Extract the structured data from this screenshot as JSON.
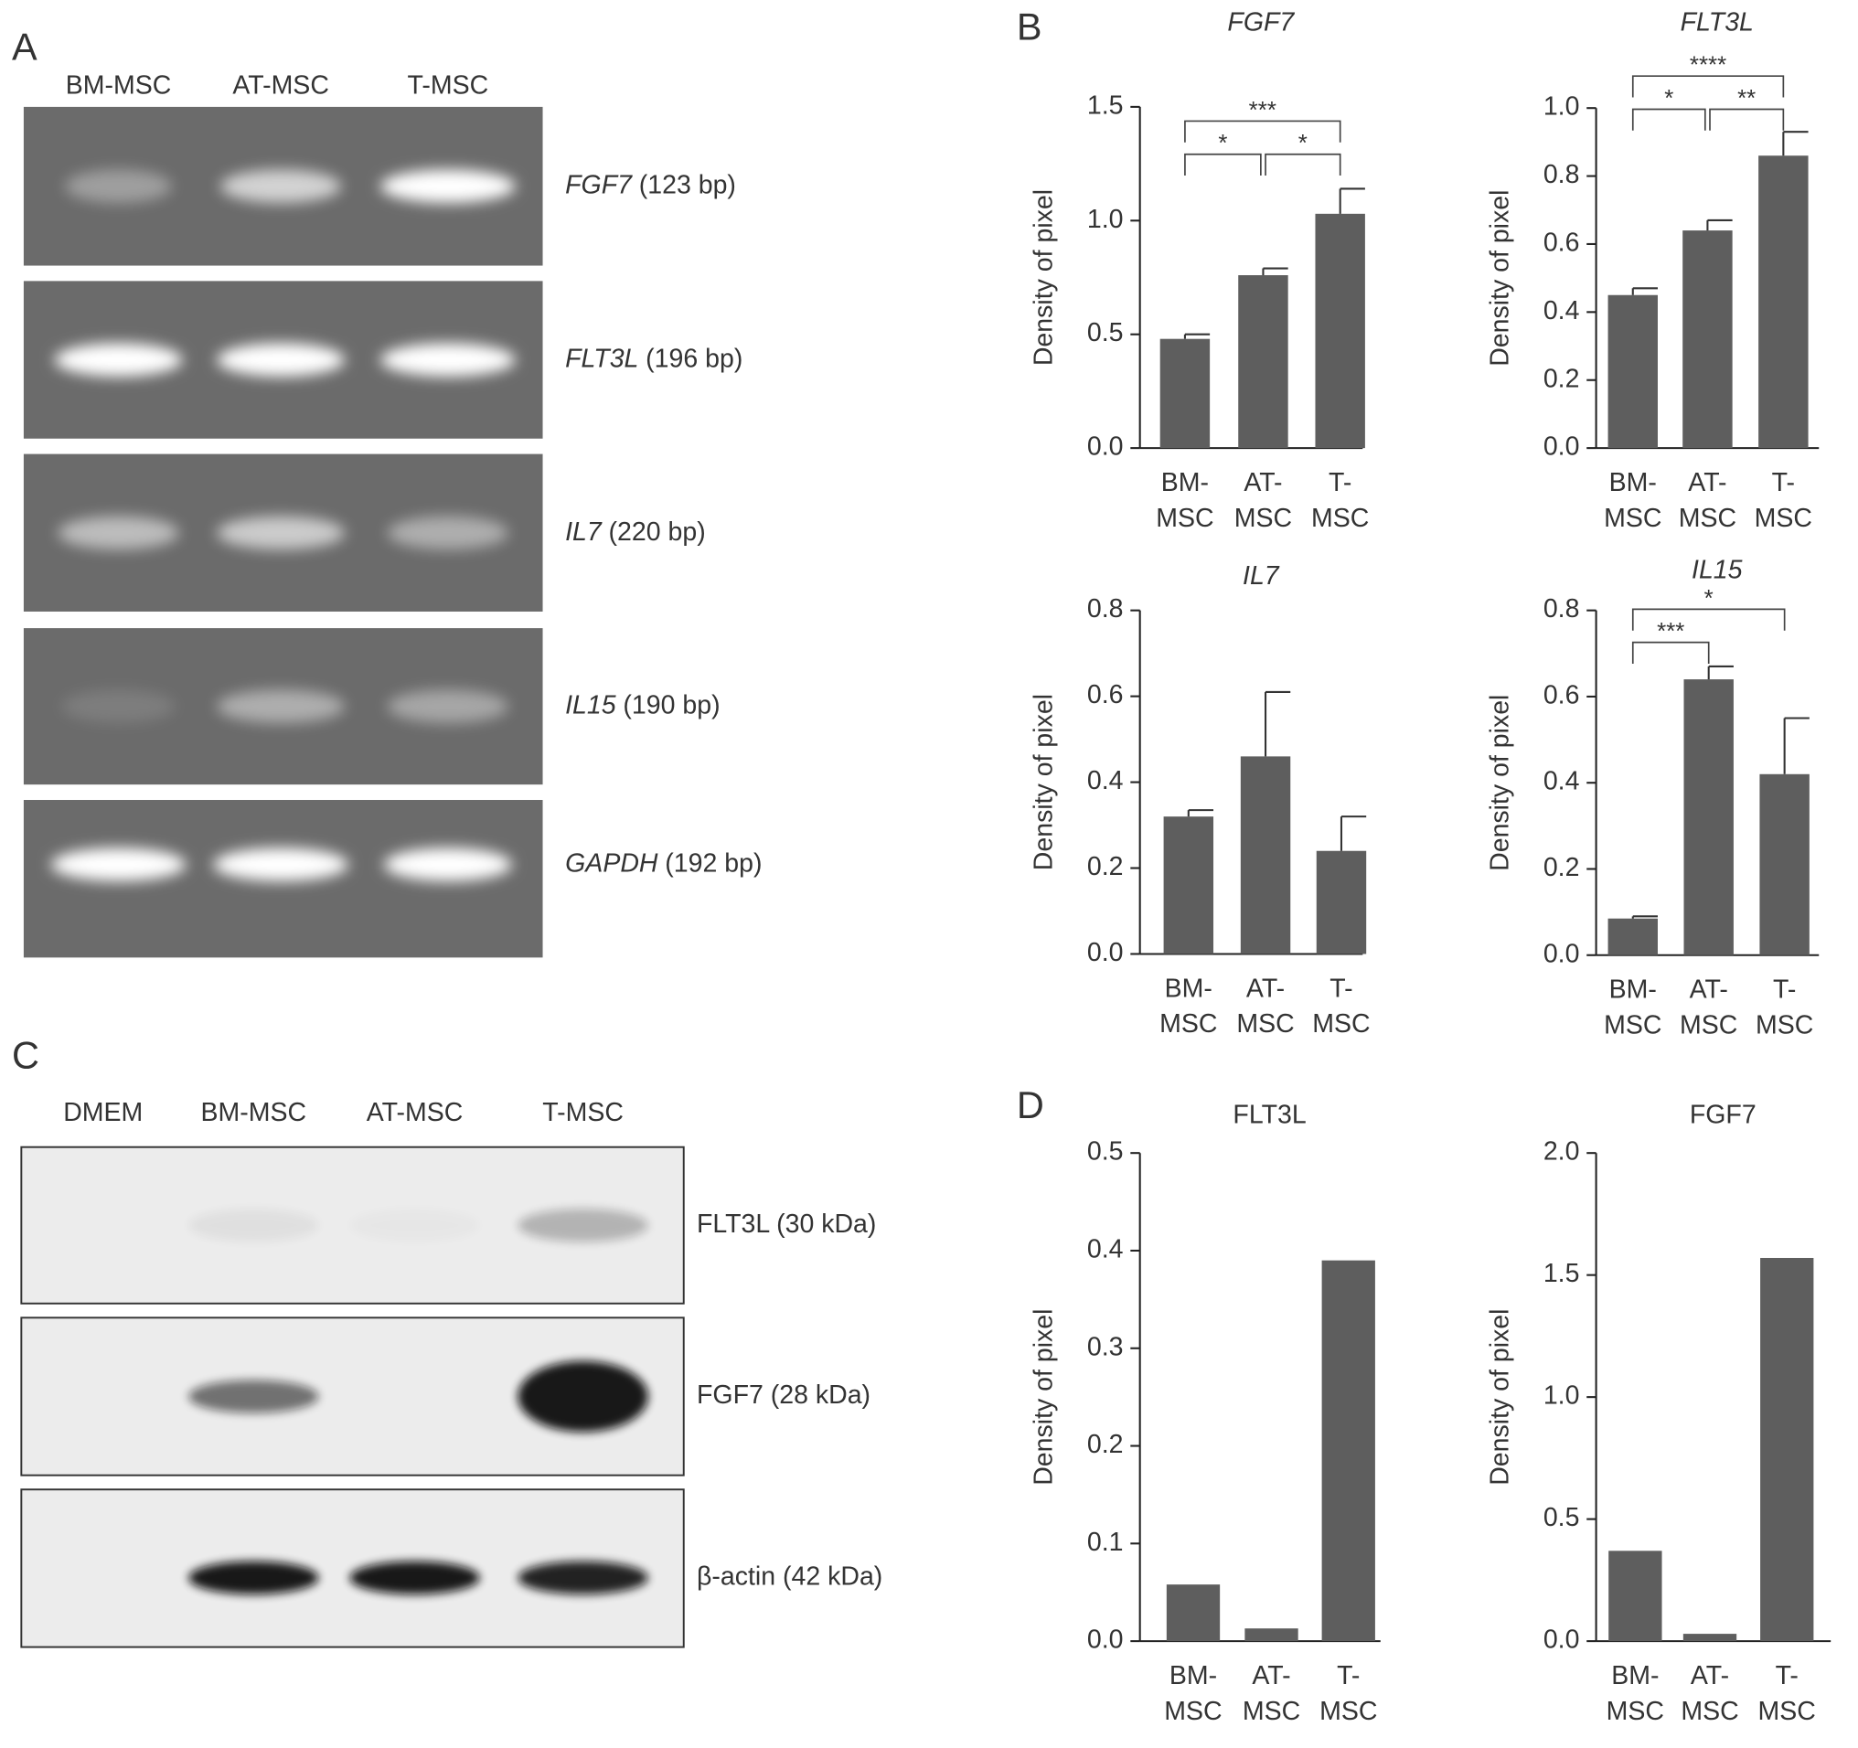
{
  "panel_labels": [
    "A",
    "B",
    "C",
    "D"
  ],
  "rt_pcr": {
    "lanes": [
      "BM-MSC",
      "AT-MSC",
      "T-MSC"
    ],
    "bands": [
      {
        "gene": "FGF7",
        "size": "(123 bp)"
      },
      {
        "gene": "FLT3L",
        "size": "(196 bp)"
      },
      {
        "gene": "IL7",
        "size": "(220 bp)"
      },
      {
        "gene": "IL15",
        "size": "(190 bp)"
      },
      {
        "gene": "GAPDH",
        "size": "(192 bp)"
      }
    ]
  },
  "western_blot": {
    "lanes": [
      "DMEM",
      "BM-MSC",
      "AT-MSC",
      "T-MSC"
    ],
    "bands": [
      "FLT3L (30 kDa)",
      "FGF7 (28 kDa)",
      "β-actin (42 kDa)"
    ]
  },
  "chart_data": [
    {
      "type": "bar",
      "title": "FGF7",
      "title_style": "italic",
      "ylabel": "Density of pixel",
      "color": "#5e5e5e",
      "categories": [
        "BM-\nMSC",
        "AT-\nMSC",
        "T-\nMSC"
      ],
      "values": [
        0.48,
        0.76,
        1.03
      ],
      "errors": [
        0.02,
        0.03,
        0.11
      ],
      "ylim": [
        0,
        1.5
      ],
      "yticks": [
        {
          "value": 0,
          "label": "0.0"
        },
        {
          "value": 0.5,
          "label": "0.5"
        },
        {
          "value": 1,
          "label": "1.0"
        },
        {
          "value": 1.5,
          "label": "1.5"
        }
      ],
      "annotations": [
        {
          "from": 0,
          "to": 1,
          "label": "*"
        },
        {
          "from": 1,
          "to": 2,
          "label": "*"
        },
        {
          "from": 0,
          "to": 2,
          "label": "***"
        }
      ]
    },
    {
      "type": "bar",
      "title": "FLT3L",
      "title_style": "italic",
      "ylabel": "Density of pixel",
      "color": "#5e5e5e",
      "categories": [
        "BM-\nMSC",
        "AT-\nMSC",
        "T-\nMSC"
      ],
      "values": [
        0.45,
        0.64,
        0.86
      ],
      "errors": [
        0.02,
        0.03,
        0.07
      ],
      "ylim": [
        0,
        1.0
      ],
      "yticks": [
        {
          "value": 0,
          "label": "0.0"
        },
        {
          "value": 0.2,
          "label": "0.2"
        },
        {
          "value": 0.4,
          "label": "0.4"
        },
        {
          "value": 0.6,
          "label": "0.6"
        },
        {
          "value": 0.8,
          "label": "0.8"
        },
        {
          "value": 1,
          "label": "1.0"
        }
      ],
      "annotations": [
        {
          "from": 0,
          "to": 1,
          "label": "*"
        },
        {
          "from": 1,
          "to": 2,
          "label": "**"
        },
        {
          "from": 0,
          "to": 2,
          "label": "****"
        }
      ]
    },
    {
      "type": "bar",
      "title": "IL7",
      "title_style": "italic",
      "ylabel": "Density of pixel",
      "color": "#5e5e5e",
      "categories": [
        "BM-\nMSC",
        "AT-\nMSC",
        "T-\nMSC"
      ],
      "values": [
        0.32,
        0.46,
        0.24
      ],
      "errors": [
        0.015,
        0.15,
        0.08
      ],
      "ylim": [
        0,
        0.8
      ],
      "yticks": [
        {
          "value": 0,
          "label": "0.0"
        },
        {
          "value": 0.2,
          "label": "0.2"
        },
        {
          "value": 0.4,
          "label": "0.4"
        },
        {
          "value": 0.6,
          "label": "0.6"
        },
        {
          "value": 0.8,
          "label": "0.8"
        }
      ]
    },
    {
      "type": "bar",
      "title": "IL15",
      "title_style": "italic",
      "ylabel": "Density of pixel",
      "color": "#5e5e5e",
      "categories": [
        "BM-\nMSC",
        "AT-\nMSC",
        "T-\nMSC"
      ],
      "values": [
        0.085,
        0.64,
        0.42
      ],
      "errors": [
        0.005,
        0.03,
        0.13
      ],
      "ylim": [
        0,
        0.8
      ],
      "yticks": [
        {
          "value": 0,
          "label": "0.0"
        },
        {
          "value": 0.2,
          "label": "0.2"
        },
        {
          "value": 0.4,
          "label": "0.4"
        },
        {
          "value": 0.6,
          "label": "0.6"
        },
        {
          "value": 0.8,
          "label": "0.8"
        }
      ],
      "annotations": [
        {
          "from": 0,
          "to": 1,
          "label": "***"
        },
        {
          "from": 0,
          "to": 2,
          "label": "*"
        }
      ]
    },
    {
      "type": "bar",
      "title": "FLT3L",
      "title_style": "normal",
      "ylabel": "Density of pixel",
      "color": "#5e5e5e",
      "categories": [
        "BM-\nMSC",
        "AT-\nMSC",
        "T-\nMSC"
      ],
      "values": [
        0.058,
        0.013,
        0.39
      ],
      "ylim": [
        0,
        0.5
      ],
      "yticks": [
        {
          "value": 0,
          "label": "0.0"
        },
        {
          "value": 0.1,
          "label": "0.1"
        },
        {
          "value": 0.2,
          "label": "0.2"
        },
        {
          "value": 0.3,
          "label": "0.3"
        },
        {
          "value": 0.4,
          "label": "0.4"
        },
        {
          "value": 0.5,
          "label": "0.5"
        }
      ]
    },
    {
      "type": "bar",
      "title": "FGF7",
      "title_style": "normal",
      "ylabel": "Density of pixel",
      "color": "#5e5e5e",
      "categories": [
        "BM-\nMSC",
        "AT-\nMSC",
        "T-\nMSC"
      ],
      "values": [
        0.37,
        0.03,
        1.57
      ],
      "ylim": [
        0,
        2.0
      ],
      "yticks": [
        {
          "value": 0,
          "label": "0.0"
        },
        {
          "value": 0.5,
          "label": "0.5"
        },
        {
          "value": 1,
          "label": "1.0"
        },
        {
          "value": 1.5,
          "label": "1.5"
        },
        {
          "value": 2,
          "label": "2.0"
        }
      ]
    }
  ]
}
